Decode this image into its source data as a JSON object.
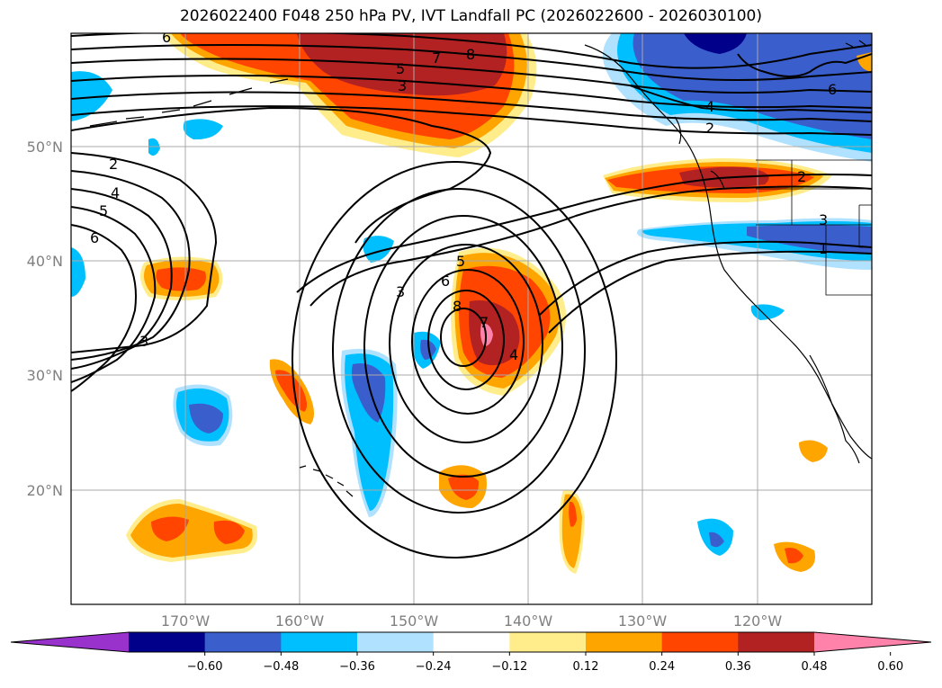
{
  "title": "2026022400 F048 250 hPa PV, IVT Landfall PC (2026022600 - 2026030100)",
  "map": {
    "lat_labels": [
      "50°N",
      "40°N",
      "30°N",
      "20°N"
    ],
    "lon_labels": [
      "170°W",
      "160°W",
      "150°W",
      "140°W",
      "130°W",
      "120°W"
    ],
    "contour_labels": [
      "6",
      "8",
      "7",
      "5",
      "3",
      "2",
      "4",
      "5",
      "6",
      "3",
      "2",
      "4",
      "6",
      "2",
      "3",
      "1",
      "3",
      "6",
      "5",
      "8",
      "7",
      "4"
    ]
  },
  "colorbar": {
    "colors": [
      "#9932cc",
      "#00008b",
      "#3a5fcd",
      "#00bfff",
      "#b0e2ff",
      "#ffffff",
      "#ffec8b",
      "#ffa500",
      "#ff4500",
      "#b22222",
      "#ff82ab"
    ],
    "tick_labels": [
      "−0.60",
      "−0.48",
      "−0.36",
      "−0.24",
      "−0.12",
      "0.12",
      "0.24",
      "0.36",
      "0.48",
      "0.60"
    ]
  }
}
